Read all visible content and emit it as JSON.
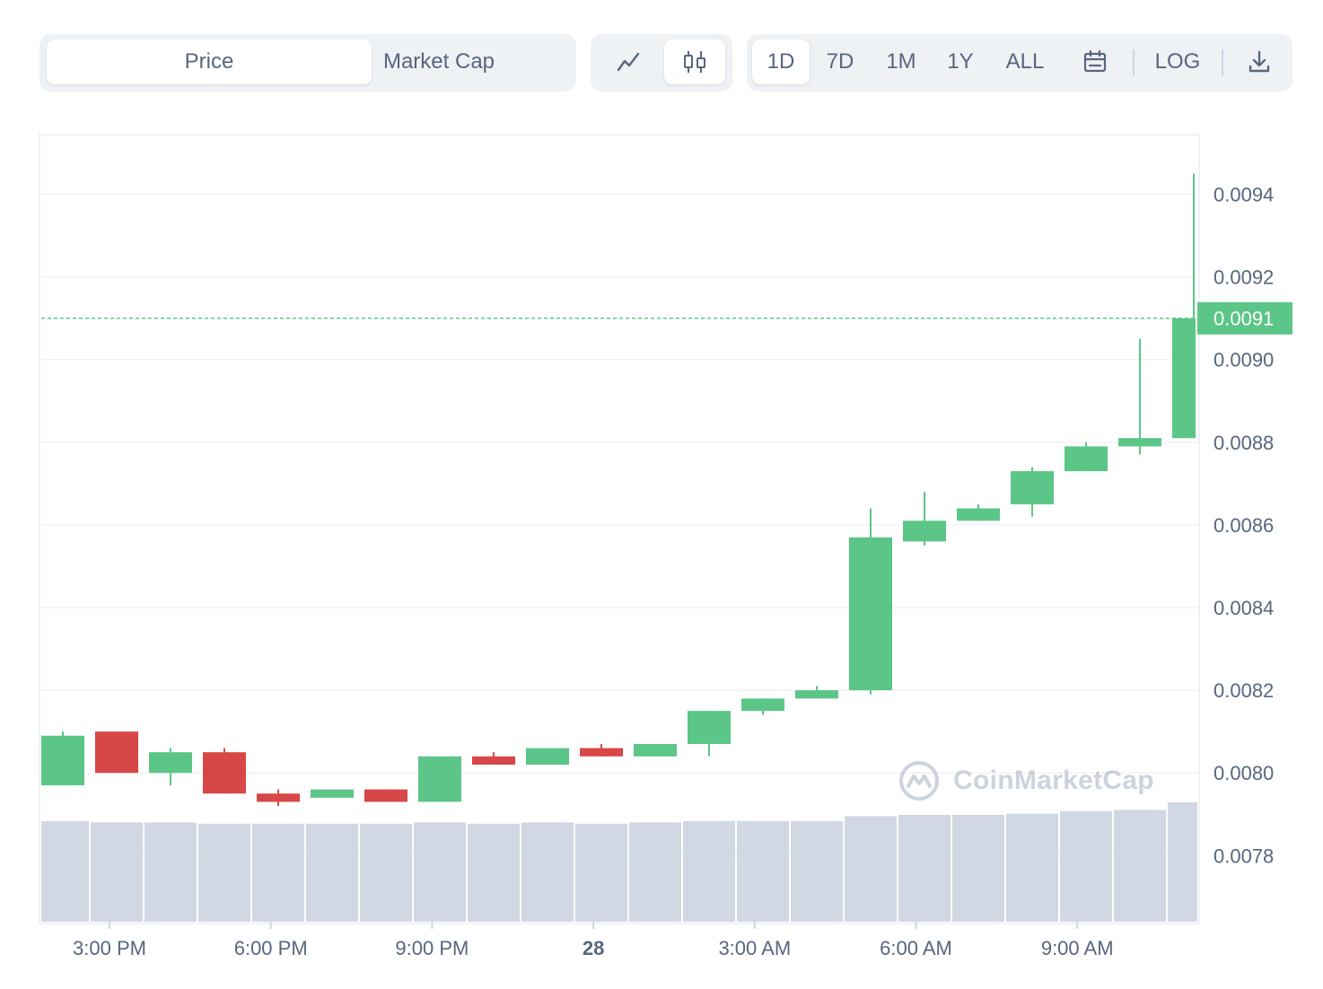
{
  "toolbar": {
    "metric_tabs": [
      {
        "label": "Price",
        "active": true
      },
      {
        "label": "Market Cap",
        "active": false
      }
    ],
    "chart_type_buttons": [
      {
        "icon": "line-chart-icon",
        "active": false
      },
      {
        "icon": "candlestick-icon",
        "active": true
      }
    ],
    "range_buttons": [
      {
        "label": "1D",
        "active": true
      },
      {
        "label": "7D",
        "active": false
      },
      {
        "label": "1M",
        "active": false
      },
      {
        "label": "1Y",
        "active": false
      },
      {
        "label": "ALL",
        "active": false
      }
    ],
    "calendar_icon": "calendar-icon",
    "log_label": "LOG",
    "download_icon": "download-icon"
  },
  "watermark": {
    "text": "CoinMarketCap",
    "icon": "coinmarketcap-logo-icon"
  },
  "colors": {
    "up": "#5bc687",
    "down": "#d84747",
    "volume": "#d1d7e3",
    "grid": "#eff2f5",
    "text": "#58667e"
  },
  "chart_data": {
    "type": "candlestick",
    "ylim": [
      0.00764,
      0.00954
    ],
    "yticks": [
      "0.0078",
      "0.0080",
      "0.0082",
      "0.0084",
      "0.0086",
      "0.0088",
      "0.0090",
      "0.0092",
      "0.0094"
    ],
    "current_price": {
      "label": "0.0091",
      "value": 0.0091
    },
    "x_labels": [
      "3:00 PM",
      "6:00 PM",
      "9:00 PM",
      "28",
      "3:00 AM",
      "6:00 AM",
      "9:00 AM"
    ],
    "candles": [
      {
        "open": 0.00797,
        "high": 0.0081,
        "low": 0.00797,
        "close": 0.00809
      },
      {
        "open": 0.0081,
        "high": 0.0081,
        "low": 0.008,
        "close": 0.008
      },
      {
        "open": 0.008,
        "high": 0.00806,
        "low": 0.00797,
        "close": 0.00805
      },
      {
        "open": 0.00805,
        "high": 0.00806,
        "low": 0.00795,
        "close": 0.00795
      },
      {
        "open": 0.00795,
        "high": 0.00796,
        "low": 0.00792,
        "close": 0.00793
      },
      {
        "open": 0.00794,
        "high": 0.00796,
        "low": 0.00794,
        "close": 0.00796
      },
      {
        "open": 0.00796,
        "high": 0.00796,
        "low": 0.00793,
        "close": 0.00793
      },
      {
        "open": 0.00793,
        "high": 0.00804,
        "low": 0.00793,
        "close": 0.00804
      },
      {
        "open": 0.00804,
        "high": 0.00805,
        "low": 0.00802,
        "close": 0.00802
      },
      {
        "open": 0.00802,
        "high": 0.00806,
        "low": 0.00802,
        "close": 0.00806
      },
      {
        "open": 0.00806,
        "high": 0.00807,
        "low": 0.00804,
        "close": 0.00804
      },
      {
        "open": 0.00804,
        "high": 0.00807,
        "low": 0.00804,
        "close": 0.00807
      },
      {
        "open": 0.00807,
        "high": 0.00815,
        "low": 0.00804,
        "close": 0.00815
      },
      {
        "open": 0.00815,
        "high": 0.00818,
        "low": 0.00814,
        "close": 0.00818
      },
      {
        "open": 0.00818,
        "high": 0.00821,
        "low": 0.00818,
        "close": 0.0082
      },
      {
        "open": 0.0082,
        "high": 0.00864,
        "low": 0.00819,
        "close": 0.00857
      },
      {
        "open": 0.00856,
        "high": 0.00868,
        "low": 0.00855,
        "close": 0.00861
      },
      {
        "open": 0.00861,
        "high": 0.00865,
        "low": 0.00861,
        "close": 0.00864
      },
      {
        "open": 0.00865,
        "high": 0.00874,
        "low": 0.00862,
        "close": 0.00873
      },
      {
        "open": 0.00873,
        "high": 0.0088,
        "low": 0.00873,
        "close": 0.00879
      },
      {
        "open": 0.00879,
        "high": 0.00905,
        "low": 0.00877,
        "close": 0.00881
      },
      {
        "open": 0.00881,
        "high": 0.00945,
        "low": 0.00881,
        "close": 0.0091
      }
    ],
    "volume_relative": [
      0.8,
      0.79,
      0.79,
      0.78,
      0.78,
      0.78,
      0.78,
      0.79,
      0.78,
      0.79,
      0.78,
      0.79,
      0.8,
      0.8,
      0.8,
      0.84,
      0.85,
      0.85,
      0.86,
      0.88,
      0.89,
      0.95
    ]
  }
}
